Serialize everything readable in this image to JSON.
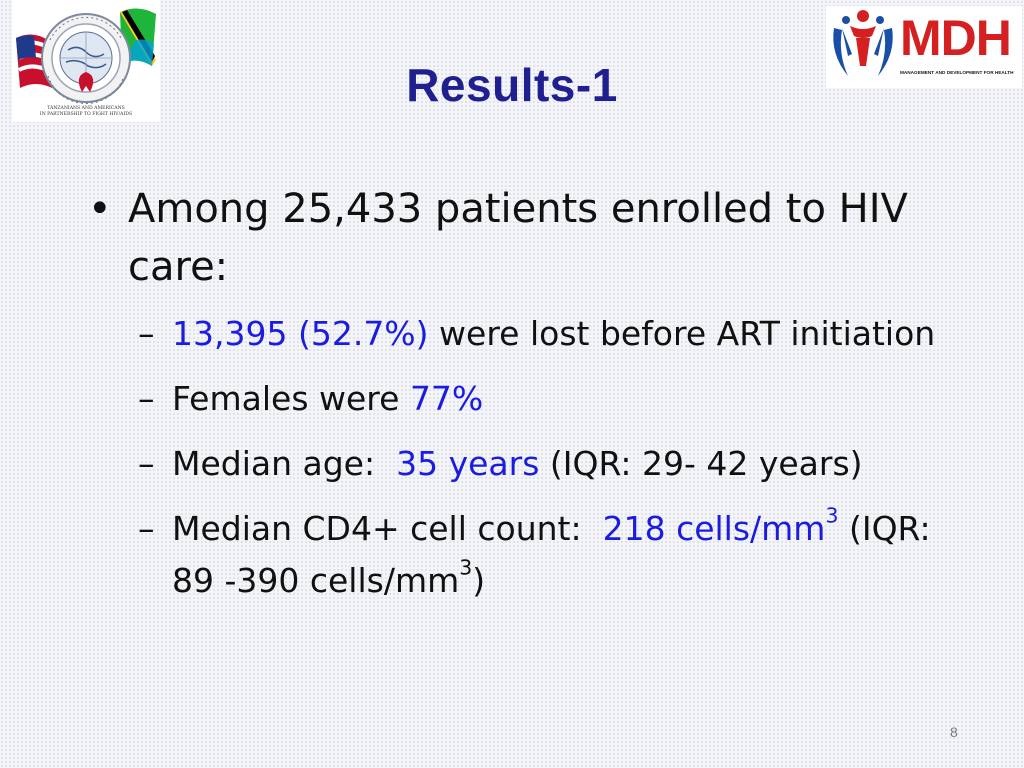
{
  "logos": {
    "left_seal": {
      "icon": "us-tanzania-partnership-seal",
      "caption_line1": "TANZANIANS AND AMERICANS",
      "caption_line2": "IN PARTNERSHIP TO FIGHT HIV/AIDS"
    },
    "right_brand": {
      "icon": "mdh-people-emblem",
      "wordmark": "MDH",
      "tagline": "MANAGEMENT AND DEVELOPMENT FOR HEALTH"
    }
  },
  "title": "Results-1",
  "bullet": {
    "marker": "•",
    "text": "Among 25,433 patients enrolled to HIV care:"
  },
  "sub_items": [
    {
      "marker": "–",
      "highlight": "13,395 (52.7%)",
      "text_after": " were lost before ART initiation"
    },
    {
      "marker": "–",
      "text_before": "Females were ",
      "highlight": "77%"
    },
    {
      "marker": "–",
      "text_before": "Median age:  ",
      "highlight": "35 years",
      "text_after": " (IQR: 29- 42 years)"
    },
    {
      "marker": "–",
      "text_before": "Median CD4+ cell count:  ",
      "highlight": "218 cells/mm",
      "highlight_sup": "3",
      "text_after": " (IQR: 89 -390 cells/mm",
      "text_after_sup": "3",
      "text_end": ")"
    }
  ],
  "page_number": "8",
  "colors": {
    "title": "#1f1f8f",
    "highlight": "#1c1ce0",
    "body_text": "#111111",
    "mdh_red": "#d42020",
    "mdh_blue": "#1a4fa8"
  }
}
